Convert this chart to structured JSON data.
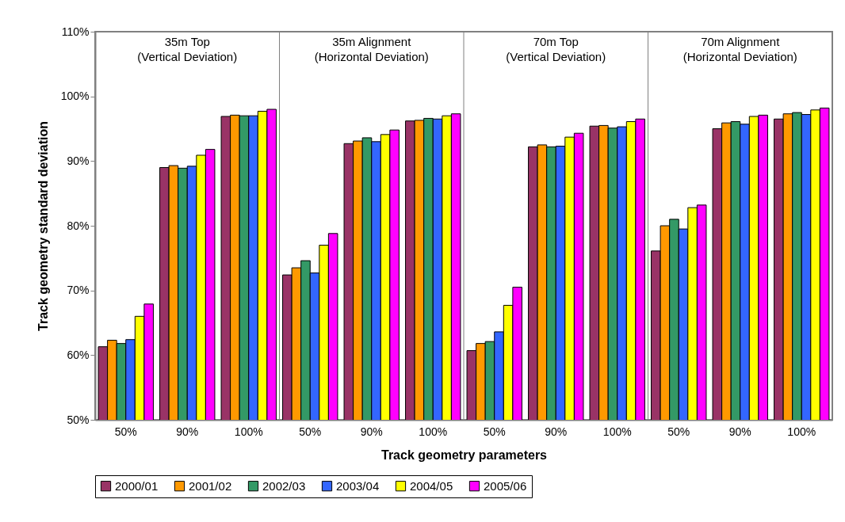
{
  "chart_data": {
    "type": "bar",
    "xlabel": "Track geometry parameters",
    "ylabel": "Track geometry standard deviation",
    "categories": [
      "50%",
      "90%",
      "100%",
      "50%",
      "90%",
      "100%",
      "50%",
      "90%",
      "100%",
      "50%",
      "90%",
      "100%"
    ],
    "series": [
      {
        "name": "2000/01",
        "color": "#993366",
        "values": [
          61.3,
          89.0,
          96.9,
          72.4,
          92.7,
          96.2,
          60.7,
          92.2,
          95.4,
          76.1,
          95.0,
          96.5
        ]
      },
      {
        "name": "2001/02",
        "color": "#ff9900",
        "values": [
          62.3,
          89.3,
          97.1,
          73.5,
          93.1,
          96.3,
          61.8,
          92.5,
          95.5,
          80.0,
          95.9,
          97.3
        ]
      },
      {
        "name": "2002/03",
        "color": "#339966",
        "values": [
          61.8,
          88.9,
          97.0,
          74.6,
          93.6,
          96.6,
          62.1,
          92.2,
          95.1,
          81.0,
          96.1,
          97.5
        ]
      },
      {
        "name": "2003/04",
        "color": "#3366ff",
        "values": [
          62.4,
          89.2,
          97.0,
          72.7,
          93.0,
          96.5,
          63.6,
          92.3,
          95.3,
          79.5,
          95.7,
          97.2
        ]
      },
      {
        "name": "2004/05",
        "color": "#ffff00",
        "values": [
          66.0,
          90.9,
          97.7,
          77.0,
          94.1,
          97.0,
          67.7,
          93.7,
          96.1,
          82.8,
          96.9,
          97.9
        ]
      },
      {
        "name": "2005/06",
        "color": "#ff00ff",
        "values": [
          67.9,
          91.8,
          98.0,
          78.8,
          94.8,
          97.3,
          70.5,
          94.3,
          96.5,
          83.2,
          97.1,
          98.2
        ]
      }
    ],
    "ylim": [
      50,
      110
    ],
    "yticks": [
      {
        "value": 50,
        "label": "50%"
      },
      {
        "value": 60,
        "label": "60%"
      },
      {
        "value": 70,
        "label": "70%"
      },
      {
        "value": 80,
        "label": "80%"
      },
      {
        "value": 90,
        "label": "90%"
      },
      {
        "value": 100,
        "label": "100%"
      },
      {
        "value": 110,
        "label": "110%"
      }
    ],
    "annotations": [
      "35m Top\n(Vertical Deviation)",
      "35m Alignment\n(Horizontal Deviation)",
      "70m Top\n(Vertical Deviation)",
      "70m Alignment\n(Horizontal Deviation)"
    ],
    "legend": "bottom",
    "grid": false
  }
}
